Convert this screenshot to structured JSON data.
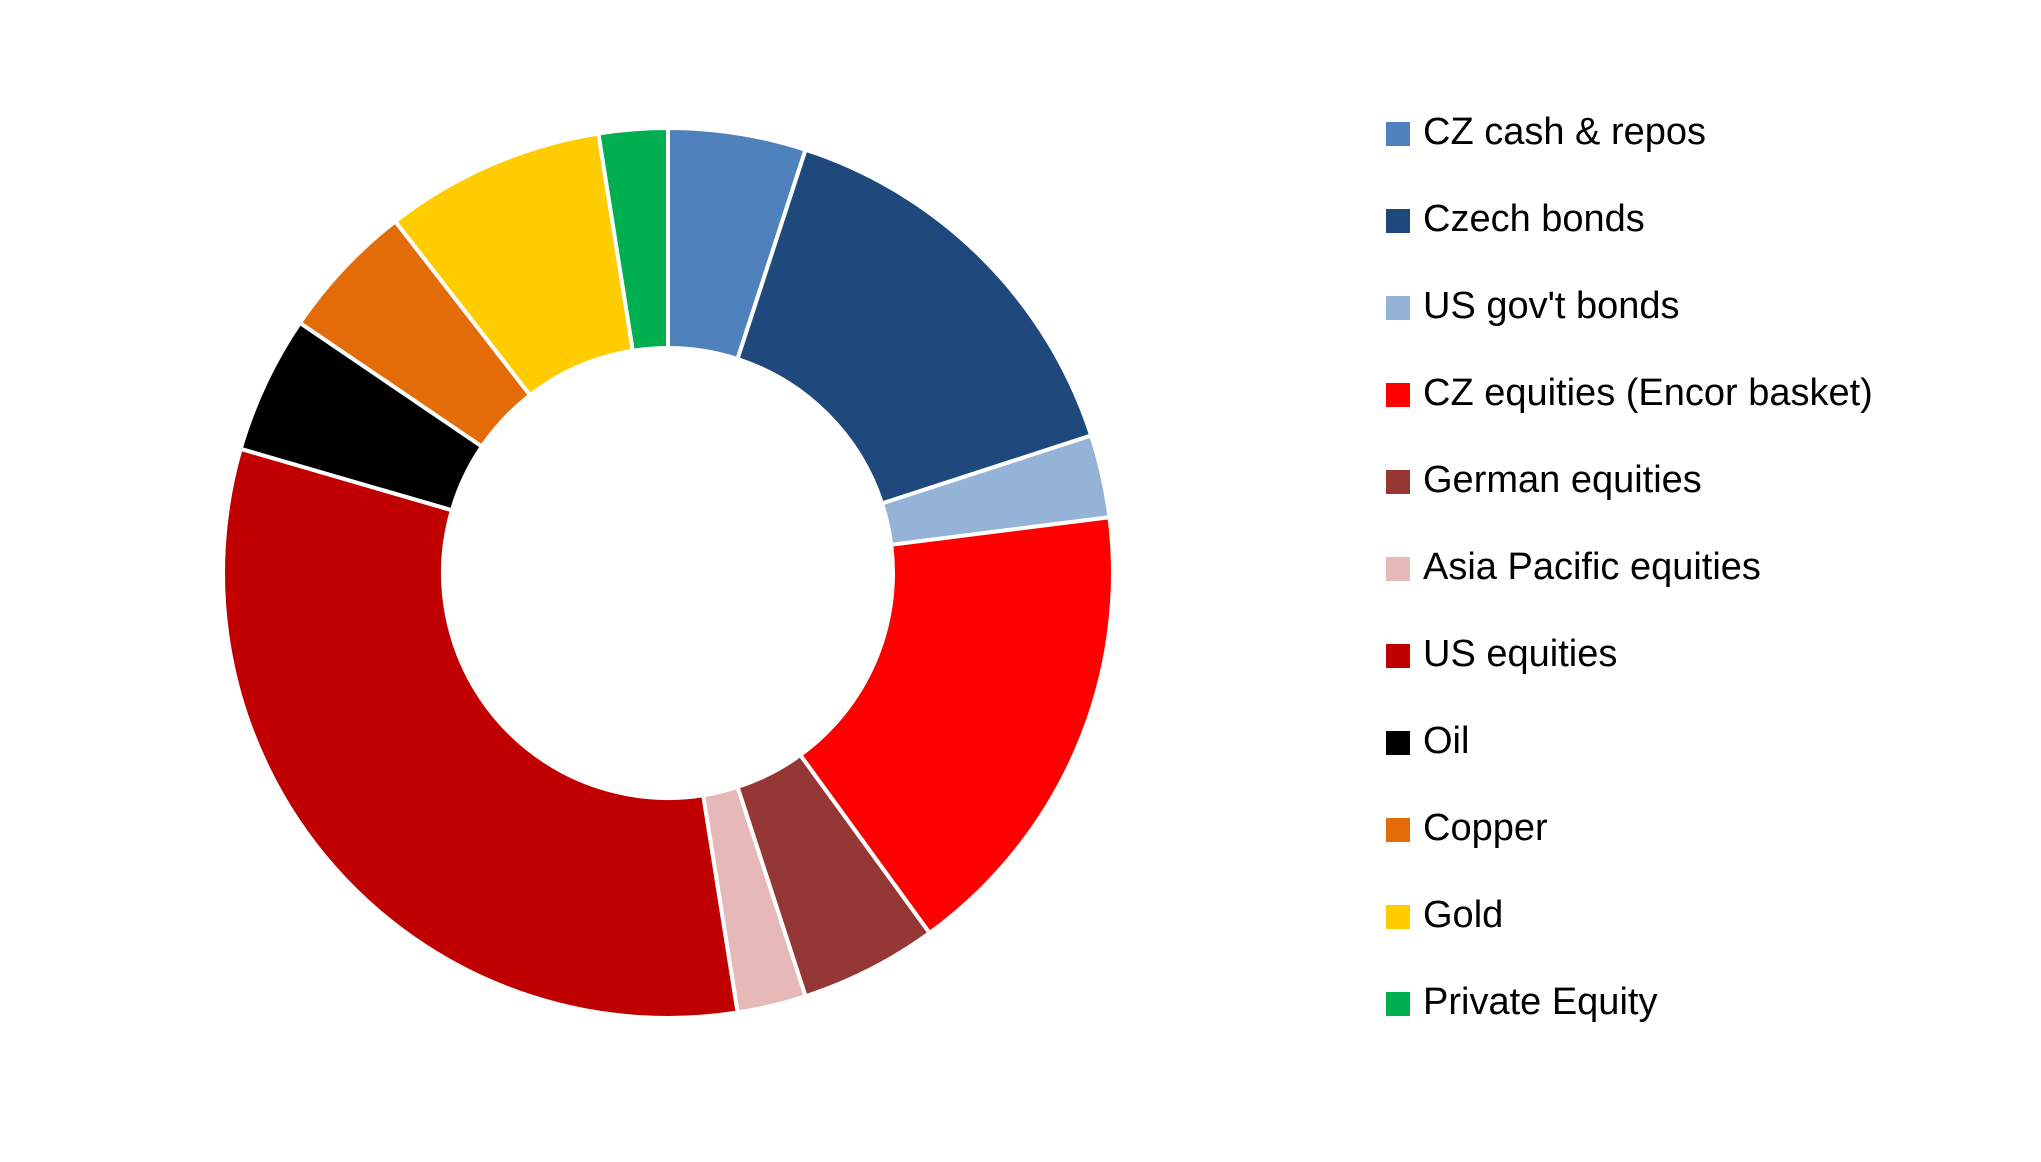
{
  "chart_data": {
    "type": "doughnut",
    "categories": [
      "CZ cash & repos",
      "Czech bonds",
      "US gov't bonds",
      "CZ equities (Encor basket)",
      "German equities",
      "Asia Pacific equities",
      "US equities",
      "Oil",
      "Copper",
      "Gold",
      "Private Equity"
    ],
    "values": [
      5,
      15,
      3,
      17,
      5,
      2.5,
      32,
      5,
      5,
      8,
      2.5
    ],
    "colors": [
      "#4f81bd",
      "#1f497d",
      "#95b3d7",
      "#ff0000",
      "#953735",
      "#e6b9b8",
      "#c00000",
      "#000000",
      "#e36c09",
      "#ffcc00",
      "#00b050"
    ],
    "legend": "right"
  }
}
